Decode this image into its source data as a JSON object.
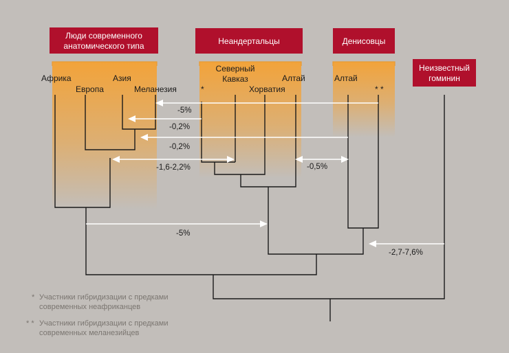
{
  "groups": {
    "modern": {
      "label_line1": "Люди современного",
      "label_line2": "анатомического типа"
    },
    "neanderthal": {
      "label": "Неандертальцы"
    },
    "denisovan": {
      "label": "Денисовцы"
    },
    "unknown": {
      "label_line1": "Неизвестный",
      "label_line2": "гоминин"
    }
  },
  "leaves": {
    "africa": "Африка",
    "asia": "Азия",
    "europe": "Европа",
    "melanesia": "Меланезия",
    "neanderthal_star": "*",
    "north_caucasus_line1": "Северный",
    "north_caucasus_line2": "Кавказ",
    "croatia": "Хорватия",
    "neanderthal_altai": "Алтай",
    "denisovan_altai": "Алтай",
    "denisovan_stars": "* *"
  },
  "gene_flow": [
    {
      "label": "-5%"
    },
    {
      "label": "-0,2%"
    },
    {
      "label": "-0,2%"
    },
    {
      "label": "-1,6-2,2%"
    },
    {
      "label": "-0,5%"
    },
    {
      "label": "-5%"
    },
    {
      "label": "-2,7-7,6%"
    }
  ],
  "legend": {
    "note1_mark": "*",
    "note1_line1": "Участники гибридизации с предками",
    "note1_line2": "современных неафриканцев",
    "note2_mark": "* *",
    "note2_line1": "Участники гибридизации с предками",
    "note2_line2": "современных меланезийцев"
  },
  "colors": {
    "background": "#c2beba",
    "header_box": "#b0102c",
    "gradient_top": "#f2a33a",
    "lines": "#1a1a1a",
    "arrows": "#ffffff",
    "legend_text": "#7a7570"
  }
}
